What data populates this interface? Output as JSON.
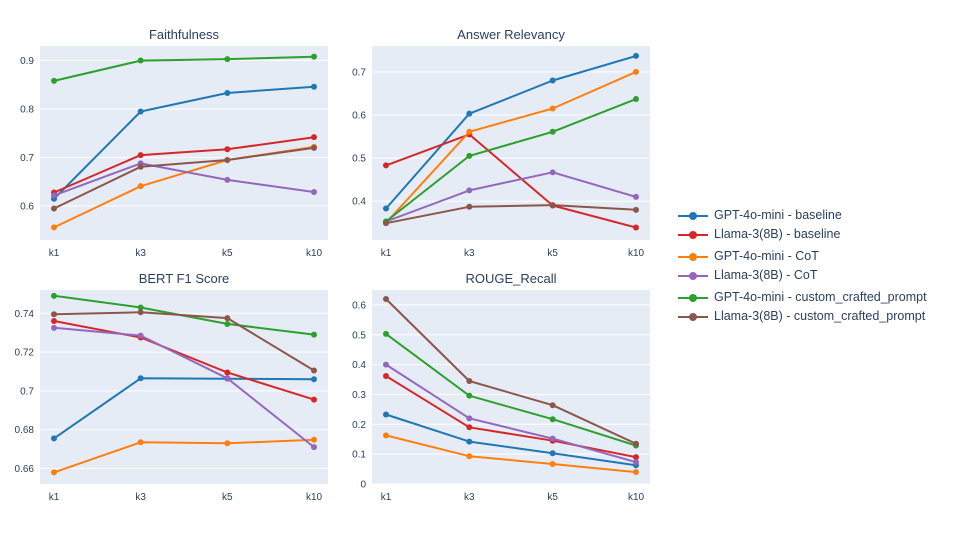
{
  "legend": [
    {
      "key": "gpt_baseline",
      "label": "GPT-4o-mini - baseline",
      "color": "#1f77b4"
    },
    {
      "key": "llama_baseline",
      "label": "Llama-3(8B) - baseline",
      "color": "#d62728"
    },
    {
      "key": "gpt_cot",
      "label": "GPT-4o-mini - CoT",
      "color": "#ff7f0e"
    },
    {
      "key": "llama_cot",
      "label": "Llama-3(8B) - CoT",
      "color": "#9467bd"
    },
    {
      "key": "gpt_custom",
      "label": "GPT-4o-mini - custom_crafted_prompt",
      "color": "#2ca02c"
    },
    {
      "key": "llama_custom",
      "label": "Llama-3(8B) - custom_crafted_prompt",
      "color": "#8c564b"
    }
  ],
  "chart_data": [
    {
      "type": "line",
      "title": "Faithfulness",
      "categories": [
        "k1",
        "k3",
        "k5",
        "k10"
      ],
      "ylim": [
        0.53,
        0.93
      ],
      "yticks": [
        0.6,
        0.7,
        0.8,
        0.9
      ],
      "yticklabels": [
        "0.6",
        "0.7",
        "0.8",
        "0.9"
      ],
      "grid": true,
      "series": [
        {
          "name": "GPT-4o-mini - baseline",
          "values": [
            0.615,
            0.795,
            0.833,
            0.846
          ]
        },
        {
          "name": "Llama-3(8B) - baseline",
          "values": [
            0.628,
            0.705,
            0.717,
            0.742
          ]
        },
        {
          "name": "GPT-4o-mini - CoT",
          "values": [
            0.556,
            0.641,
            0.695,
            0.722
          ]
        },
        {
          "name": "Llama-3(8B) - CoT",
          "values": [
            0.622,
            0.688,
            0.654,
            0.629
          ]
        },
        {
          "name": "GPT-4o-mini - custom_crafted_prompt",
          "values": [
            0.858,
            0.9,
            0.903,
            0.908
          ]
        },
        {
          "name": "Llama-3(8B) - custom_crafted_prompt",
          "values": [
            0.595,
            0.681,
            0.695,
            0.72
          ]
        }
      ]
    },
    {
      "type": "line",
      "title": "Answer Relevancy",
      "categories": [
        "k1",
        "k3",
        "k5",
        "k10"
      ],
      "ylim": [
        0.31,
        0.76
      ],
      "yticks": [
        0.4,
        0.5,
        0.6,
        0.7
      ],
      "yticklabels": [
        "0.4",
        "0.5",
        "0.6",
        "0.7"
      ],
      "grid": true,
      "series": [
        {
          "name": "GPT-4o-mini - baseline",
          "values": [
            0.383,
            0.603,
            0.68,
            0.737
          ]
        },
        {
          "name": "Llama-3(8B) - baseline",
          "values": [
            0.483,
            0.555,
            0.39,
            0.339
          ]
        },
        {
          "name": "GPT-4o-mini - CoT",
          "values": [
            0.35,
            0.561,
            0.615,
            0.7
          ]
        },
        {
          "name": "Llama-3(8B) - CoT",
          "values": [
            0.353,
            0.425,
            0.467,
            0.41
          ]
        },
        {
          "name": "GPT-4o-mini - custom_crafted_prompt",
          "values": [
            0.353,
            0.505,
            0.561,
            0.637
          ]
        },
        {
          "name": "Llama-3(8B) - custom_crafted_prompt",
          "values": [
            0.349,
            0.387,
            0.391,
            0.38
          ]
        }
      ]
    },
    {
      "type": "line",
      "title": "BERT F1 Score",
      "categories": [
        "k1",
        "k3",
        "k5",
        "k10"
      ],
      "ylim": [
        0.652,
        0.752
      ],
      "yticks": [
        0.66,
        0.68,
        0.7,
        0.72,
        0.74
      ],
      "yticklabels": [
        "0.66",
        "0.68",
        "0.7",
        "0.72",
        "0.74"
      ],
      "grid": true,
      "series": [
        {
          "name": "GPT-4o-mini - baseline",
          "values": [
            0.6755,
            0.7065,
            0.7063,
            0.706
          ]
        },
        {
          "name": "Llama-3(8B) - baseline",
          "values": [
            0.736,
            0.7275,
            0.7095,
            0.6955
          ]
        },
        {
          "name": "GPT-4o-mini - CoT",
          "values": [
            0.658,
            0.6735,
            0.673,
            0.6748
          ]
        },
        {
          "name": "Llama-3(8B) - CoT",
          "values": [
            0.7325,
            0.7285,
            0.7065,
            0.671
          ]
        },
        {
          "name": "GPT-4o-mini - custom_crafted_prompt",
          "values": [
            0.749,
            0.743,
            0.7345,
            0.729
          ]
        },
        {
          "name": "Llama-3(8B) - custom_crafted_prompt",
          "values": [
            0.7395,
            0.7405,
            0.7375,
            0.7105
          ]
        }
      ]
    },
    {
      "type": "line",
      "title": "ROUGE_Recall",
      "categories": [
        "k1",
        "k3",
        "k5",
        "k10"
      ],
      "ylim": [
        0.0,
        0.65
      ],
      "yticks": [
        0,
        0.1,
        0.2,
        0.3,
        0.4,
        0.5,
        0.6
      ],
      "yticklabels": [
        "0",
        "0.1",
        "0.2",
        "0.3",
        "0.4",
        "0.5",
        "0.6"
      ],
      "grid": true,
      "series": [
        {
          "name": "GPT-4o-mini - baseline",
          "values": [
            0.233,
            0.142,
            0.103,
            0.063
          ]
        },
        {
          "name": "Llama-3(8B) - baseline",
          "values": [
            0.362,
            0.19,
            0.145,
            0.09
          ]
        },
        {
          "name": "GPT-4o-mini - CoT",
          "values": [
            0.163,
            0.093,
            0.067,
            0.04
          ]
        },
        {
          "name": "Llama-3(8B) - CoT",
          "values": [
            0.4,
            0.22,
            0.152,
            0.073
          ]
        },
        {
          "name": "GPT-4o-mini - custom_crafted_prompt",
          "values": [
            0.503,
            0.296,
            0.217,
            0.129
          ]
        },
        {
          "name": "Llama-3(8B) - custom_crafted_prompt",
          "values": [
            0.62,
            0.345,
            0.264,
            0.135
          ]
        }
      ]
    }
  ]
}
